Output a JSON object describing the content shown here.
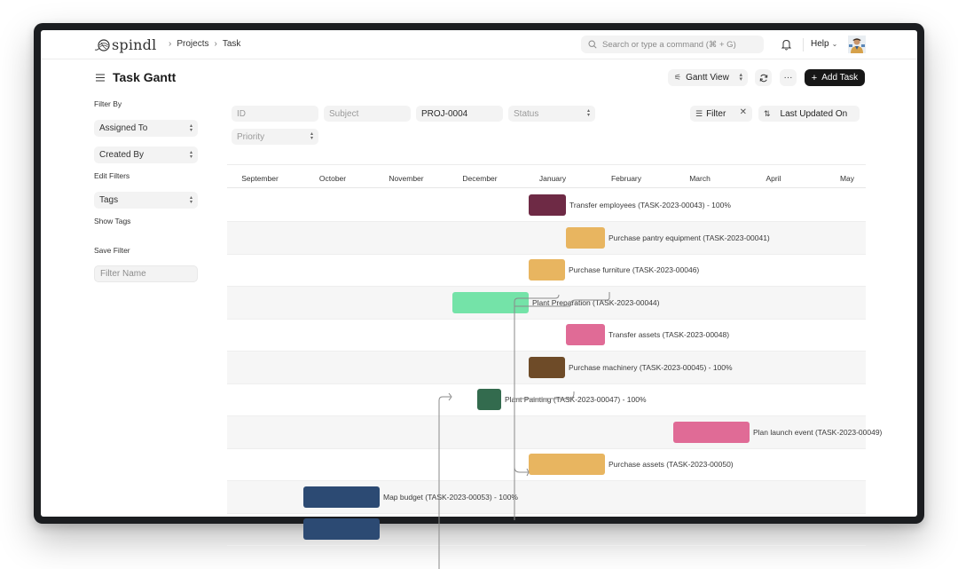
{
  "navbar": {
    "logo_text": "spindl",
    "breadcrumbs": [
      {
        "label": "Projects"
      },
      {
        "label": "Task"
      }
    ],
    "search_placeholder": "Search or type a command (⌘ + G)",
    "help_label": "Help"
  },
  "header": {
    "title": "Task Gantt",
    "view_label": "Gantt View",
    "add_task_label": "Add Task"
  },
  "sidebar": {
    "filter_by_label": "Filter By",
    "assigned_to": "Assigned To",
    "created_by": "Created By",
    "edit_filters": "Edit Filters",
    "tags": "Tags",
    "show_tags": "Show Tags",
    "save_filter_label": "Save Filter",
    "filter_name_placeholder": "Filter Name"
  },
  "filters": {
    "id_placeholder": "ID",
    "subject_placeholder": "Subject",
    "project_value": "PROJ-0004",
    "status_placeholder": "Status",
    "priority_placeholder": "Priority",
    "filter_label": "Filter",
    "sort_label": "Last Updated On"
  },
  "gantt": {
    "months": [
      "September",
      "October",
      "November",
      "December",
      "January",
      "February",
      "March",
      "April",
      "May"
    ],
    "tasks": [
      {
        "label": "Transfer employees (TASK-2023-00043) - 100%",
        "color": "#6e2a45"
      },
      {
        "label": "Purchase pantry equipment (TASK-2023-00041)",
        "color": "#e8b560"
      },
      {
        "label": "Purchase furniture (TASK-2023-00046)",
        "color": "#e8b560"
      },
      {
        "label": "Plant Preparation (TASK-2023-00044)",
        "color": "#74e3a8"
      },
      {
        "label": "Transfer assets (TASK-2023-00048)",
        "color": "#e06b96"
      },
      {
        "label": "Purchase machinery (TASK-2023-00045) - 100%",
        "color": "#6e4b28"
      },
      {
        "label": "Plant Painting (TASK-2023-00047) - 100%",
        "color": "#336b4e"
      },
      {
        "label": "Plan launch event (TASK-2023-00049)",
        "color": "#e06b96"
      },
      {
        "label": "Purchase assets (TASK-2023-00050)",
        "color": "#e8b560"
      },
      {
        "label": "Map budget (TASK-2023-00053) - 100%",
        "color": "#2c4a73"
      },
      {
        "label": "",
        "color": "#2c4a73"
      }
    ]
  }
}
